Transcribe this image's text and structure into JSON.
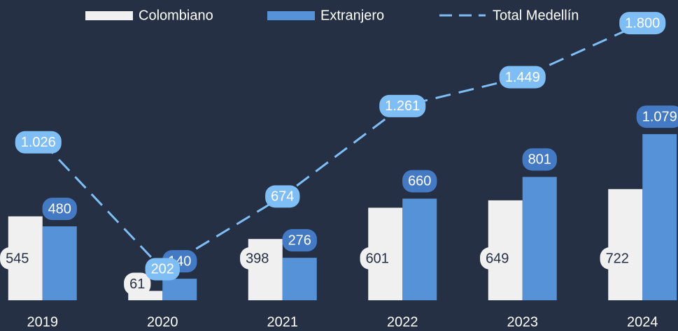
{
  "chart_data": {
    "type": "bar_line",
    "categories": [
      "2019",
      "2020",
      "2021",
      "2022",
      "2023",
      "2024"
    ],
    "series": [
      {
        "name": "Colombiano",
        "type": "bar",
        "color": "#f0f0f0",
        "values": [
          545,
          61,
          398,
          601,
          649,
          722
        ]
      },
      {
        "name": "Extranjero",
        "type": "bar",
        "color": "#5592d8",
        "values": [
          480,
          140,
          276,
          660,
          801,
          1079
        ],
        "value_labels": [
          "480",
          "140",
          "276",
          "660",
          "801",
          "1.079"
        ]
      },
      {
        "name": "Total Medellín",
        "type": "line",
        "color": "#7fbdf5",
        "values": [
          1026,
          202,
          674,
          1261,
          1449,
          1800
        ],
        "value_labels": [
          "1.026",
          "202",
          "674",
          "1.261",
          "1.449",
          "1.800"
        ]
      }
    ],
    "ylim": [
      0,
      1950
    ]
  }
}
